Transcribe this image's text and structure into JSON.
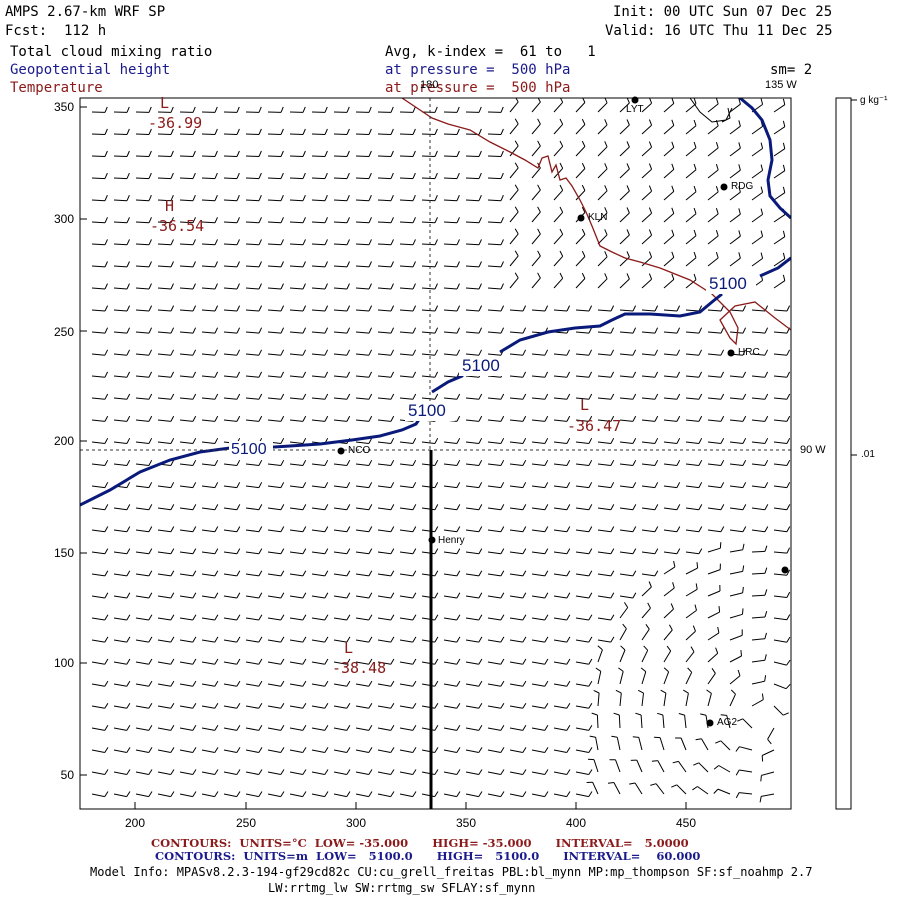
{
  "header": {
    "model": "AMPS 2.67-km WRF SP",
    "init": "Init: 00 UTC Sun 07 Dec 25",
    "forecast": "Fcst:  112 h",
    "valid": "Valid: 16 UTC Thu 11 Dec 25",
    "field1": "Total cloud mixing ratio",
    "field1_right": "Avg, k-index =  61 to   1",
    "field2": "Geopotential height",
    "field2_right": "at pressure =  500 hPa",
    "smoothing": "sm= 2",
    "field3": "Temperature",
    "field3_right": "at pressure =  500 hPa"
  },
  "colors": {
    "height": "#0a1a7a",
    "temperature": "#8b1a1a",
    "barb": "#000000"
  },
  "axes": {
    "x_ticks": [
      "200",
      "250",
      "300",
      "350",
      "400",
      "450"
    ],
    "y_ticks": [
      "350",
      "300",
      "250",
      "200",
      "150",
      "100",
      "50"
    ],
    "lon_labels": {
      "top_180": "180",
      "top_135w": "135 W",
      "right_90w": "90 W"
    }
  },
  "colorbar": {
    "units": "g kg⁻¹",
    "value": ".01"
  },
  "extrema": [
    {
      "type": "L",
      "value": "-36.99",
      "color": "temperature"
    },
    {
      "type": "H",
      "value": "-36.54",
      "color": "temperature"
    },
    {
      "type": "L",
      "value": "-36.47",
      "color": "temperature"
    },
    {
      "type": "L",
      "value": "-38.48",
      "color": "temperature"
    }
  ],
  "height_labels": [
    "5100",
    "5100",
    "5100",
    "5100"
  ],
  "stations": [
    {
      "name": "LYT"
    },
    {
      "name": "RDG"
    },
    {
      "name": "KLN"
    },
    {
      "name": "HRC"
    },
    {
      "name": "NCO"
    },
    {
      "name": "Henry"
    },
    {
      "name": "AG2"
    },
    {
      "name": ""
    }
  ],
  "footer": {
    "temp_contours": "CONTOURS:  UNITS=°C  LOW= -35.000      HIGH= -35.000      INTERVAL=   5.0000",
    "height_contours": "CONTOURS:  UNITS=m  LOW=   5100.0      HIGH=   5100.0      INTERVAL=    60.000",
    "model_info": "Model Info: MPASv8.2.3-194-gf29cd82c CU:cu_grell_freitas PBL:bl_mynn MP:mp_thompson SF:sf_noahmp 2.7",
    "model_info2": "LW:rrtmg_lw SW:rrtmg_sw SFLAY:sf_mynn"
  }
}
